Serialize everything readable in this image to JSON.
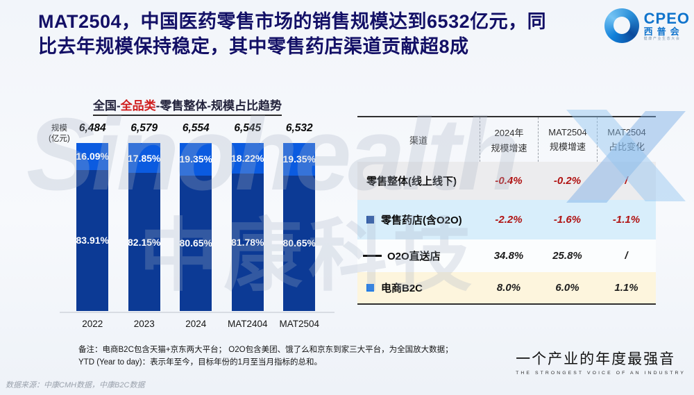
{
  "header": {
    "title_line1": "MAT2504，中国医药零售市场的销售规模达到6532亿元，同",
    "title_line2": "比去年规模保持稳定，其中零售药店渠道贡献超8成"
  },
  "logo": {
    "name": "CPEO",
    "cn": "西普会",
    "tagline": "健康产业生态大会"
  },
  "watermark": {
    "text_en": "Sinohealth",
    "text_cn": "中康科技"
  },
  "chart": {
    "title_prefix": "全国-",
    "title_highlight": "全品类",
    "title_suffix": "-零售整体-规模占比趋势",
    "unit_line1": "规模",
    "unit_line2": "(亿元)"
  },
  "chart_data": {
    "type": "bar",
    "stacked": true,
    "title": "全国-全品类-零售整体-规模占比趋势",
    "ylabel": "规模(亿元)",
    "categories": [
      "2022",
      "2023",
      "2024",
      "MAT2404",
      "MAT2504"
    ],
    "totals": [
      6484,
      6579,
      6554,
      6545,
      6532
    ],
    "total_labels": [
      "6,484",
      "6,579",
      "6,554",
      "6,545",
      "6,532"
    ],
    "series": [
      {
        "name": "upper-segment",
        "color": "#0b5be0",
        "values_pct": [
          16.09,
          17.85,
          19.35,
          18.22,
          19.35
        ]
      },
      {
        "name": "lower-segment",
        "color": "#0c3a95",
        "values_pct": [
          83.91,
          82.15,
          80.65,
          81.78,
          80.65
        ]
      }
    ],
    "legend_position": "none",
    "grid": false
  },
  "table": {
    "headers": [
      {
        "line1": "渠道",
        "line2": ""
      },
      {
        "line1": "2024年",
        "line2": "规模增速"
      },
      {
        "line1": "MAT2504",
        "line2": "规模增速"
      },
      {
        "line1": "MAT2504",
        "line2": "占比变化"
      }
    ],
    "rows": [
      {
        "channel": "零售整体(线上线下)",
        "bullet": "none",
        "values": [
          "-0.4%",
          "-0.2%",
          "/"
        ],
        "value_style": "red",
        "bg": "#ececee"
      },
      {
        "channel": "零售药店(含O2O)",
        "bullet": "square-dark",
        "values": [
          "-2.2%",
          "-1.6%",
          "-1.1%"
        ],
        "value_style": "red",
        "bg": "#d8eefb"
      },
      {
        "channel": "O2O直送店",
        "bullet": "dash",
        "values": [
          "34.8%",
          "25.8%",
          "/"
        ],
        "value_style": "dark",
        "bg": "#fbfdfe"
      },
      {
        "channel": "电商B2C",
        "bullet": "square-bright",
        "values": [
          "8.0%",
          "6.0%",
          "1.1%"
        ],
        "value_style": "dark",
        "bg": "#fdf5dd"
      }
    ]
  },
  "notes": {
    "line1": "备注：电商B2C包含天猫+京东两大平台； O2O包含美团、饿了么和京东到家三大平台，为全国放大数据；",
    "line2": "YTD (Year to day)：表示年至今，目标年份的1月至当月指标的总和。"
  },
  "slogan": {
    "cn": "一个产业的年度最强音",
    "en": "THE STRONGEST VOICE OF AN INDUSTRY"
  },
  "source": "数据来源：中康CMH数据，中康B2C数据",
  "colors": {
    "title_navy": "#131066",
    "bar_bright_blue": "#0b5be0",
    "bar_dark_blue": "#0c3a95",
    "highlight_red": "#cf1d1d",
    "value_red": "#b01212",
    "logo_blue": "#1074cc"
  }
}
